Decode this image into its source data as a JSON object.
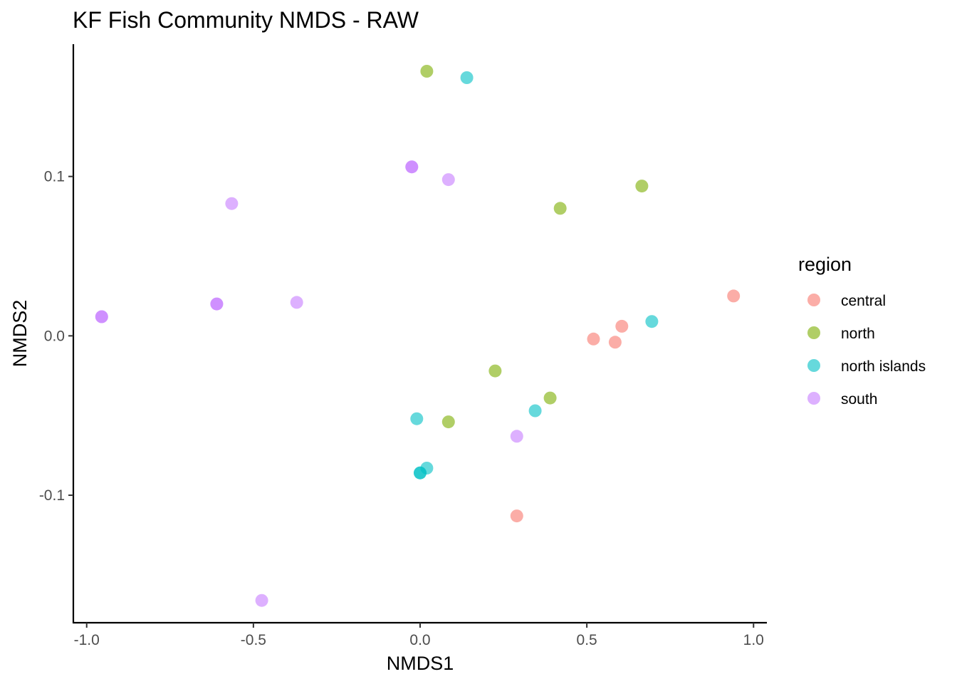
{
  "chart_data": {
    "type": "scatter",
    "title": "KF Fish Community NMDS - RAW",
    "xlabel": "NMDS1",
    "ylabel": "NMDS2",
    "xlim": [
      -1.04,
      1.04
    ],
    "ylim": [
      -0.18,
      0.183
    ],
    "x_ticks": [
      -1.0,
      -0.5,
      0.0,
      0.5,
      1.0
    ],
    "x_tick_labels": [
      "-1.0",
      "-0.5",
      "0.0",
      "0.5",
      "1.0"
    ],
    "y_ticks": [
      -0.1,
      0.0,
      0.1
    ],
    "y_tick_labels": [
      "-0.1",
      "0.0",
      "0.1"
    ],
    "grid": false,
    "legend": {
      "title": "region",
      "position": "right"
    },
    "series": [
      {
        "name": "central",
        "color": "#F8766D",
        "points": [
          {
            "x": 0.94,
            "y": 0.025
          },
          {
            "x": 0.605,
            "y": 0.006
          },
          {
            "x": 0.52,
            "y": -0.002
          },
          {
            "x": 0.585,
            "y": -0.004
          },
          {
            "x": 0.29,
            "y": -0.113
          }
        ]
      },
      {
        "name": "north",
        "color": "#7CAE00",
        "points": [
          {
            "x": 0.02,
            "y": 0.166
          },
          {
            "x": 0.665,
            "y": 0.094
          },
          {
            "x": 0.42,
            "y": 0.08
          },
          {
            "x": 0.225,
            "y": -0.022
          },
          {
            "x": 0.39,
            "y": -0.039
          },
          {
            "x": 0.085,
            "y": -0.054
          }
        ]
      },
      {
        "name": "north islands",
        "color": "#00BFC4",
        "points": [
          {
            "x": 0.14,
            "y": 0.162
          },
          {
            "x": 0.695,
            "y": 0.009
          },
          {
            "x": 0.345,
            "y": -0.047
          },
          {
            "x": -0.01,
            "y": -0.052
          },
          {
            "x": 0.02,
            "y": -0.083
          },
          {
            "x": 0.0,
            "y": -0.086
          },
          {
            "x": 0.0,
            "y": -0.086
          }
        ]
      },
      {
        "name": "south",
        "color": "#C77CFF",
        "points": [
          {
            "x": -0.025,
            "y": 0.106
          },
          {
            "x": -0.025,
            "y": 0.106
          },
          {
            "x": 0.085,
            "y": 0.098
          },
          {
            "x": -0.565,
            "y": 0.083
          },
          {
            "x": -0.61,
            "y": 0.02
          },
          {
            "x": -0.61,
            "y": 0.02
          },
          {
            "x": -0.37,
            "y": 0.021
          },
          {
            "x": -0.955,
            "y": 0.012
          },
          {
            "x": -0.955,
            "y": 0.012
          },
          {
            "x": 0.29,
            "y": -0.063
          },
          {
            "x": -0.475,
            "y": -0.166
          }
        ]
      }
    ]
  }
}
